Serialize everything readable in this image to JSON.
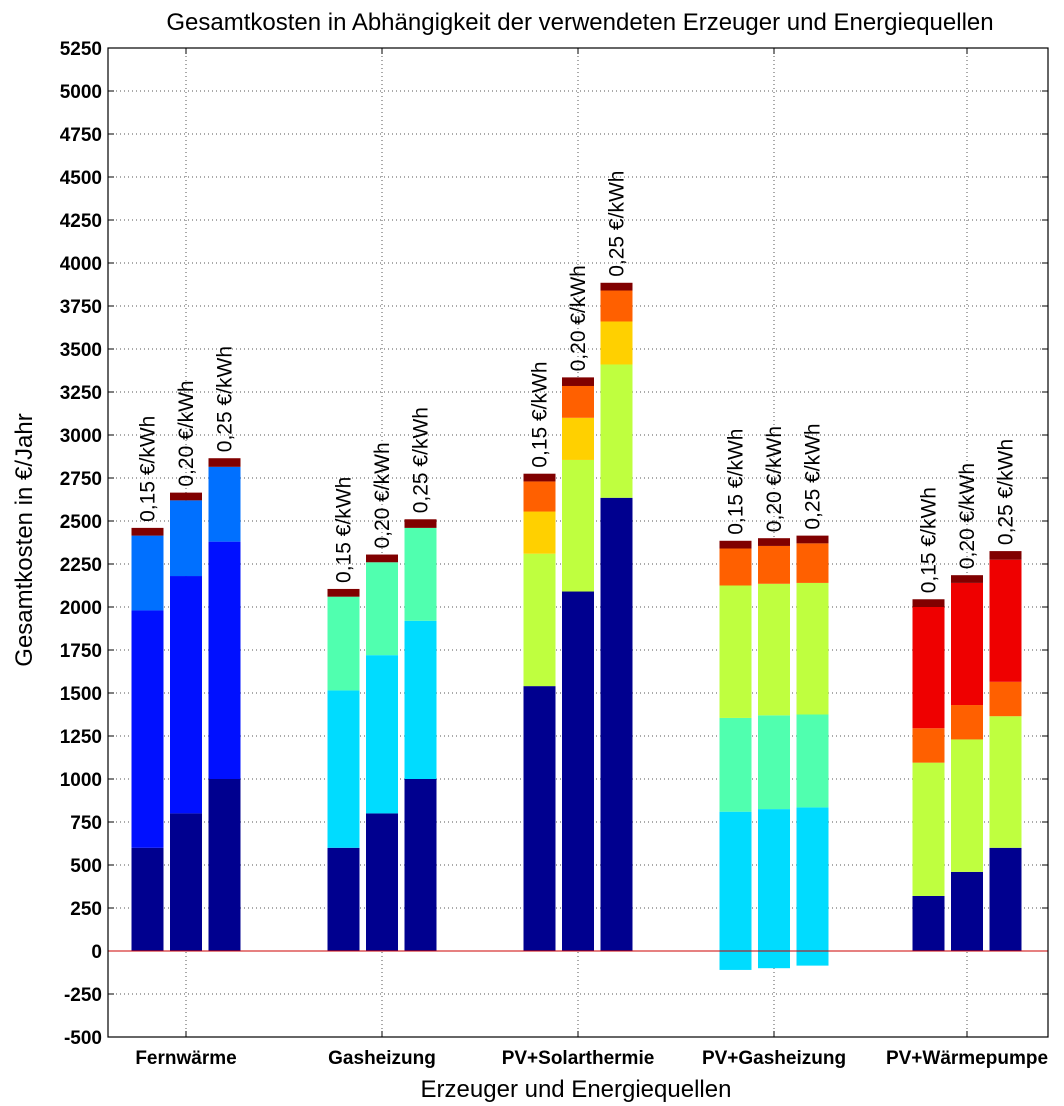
{
  "chart_data": {
    "type": "bar",
    "title": "Gesamtkosten in Abhängigkeit der verwendeten Erzeuger und Energiequellen",
    "xlabel": "Erzeuger und Energiequellen",
    "ylabel": "Gesamtkosten in €/Jahr",
    "ylim": [
      -500,
      5250
    ],
    "yticks": [
      5250,
      5000,
      4750,
      4500,
      4250,
      4000,
      3750,
      3500,
      3250,
      3000,
      2750,
      2500,
      2250,
      2000,
      1750,
      1500,
      1250,
      1000,
      750,
      500,
      250,
      0,
      -250,
      -500
    ],
    "grid": true,
    "stacked": true,
    "colors": {
      "navy": "#00008f",
      "blue": "#0010ff",
      "azure": "#0070ff",
      "cyan": "#00dcff",
      "aqua": "#50ffaf",
      "lime": "#bfff3f",
      "gold": "#ffd000",
      "orange": "#ff6000",
      "red": "#ef0000",
      "maroon": "#800000",
      "zero_line": "#cc0000",
      "grid": "#555555"
    },
    "groups": [
      {
        "category": "Fernwärme",
        "bars": [
          {
            "label": "0,15 €/kWh",
            "segments": [
              {
                "value": 600,
                "color": "navy"
              },
              {
                "value": 1380,
                "color": "blue"
              },
              {
                "value": 435,
                "color": "azure"
              },
              {
                "value": 45,
                "color": "maroon"
              }
            ]
          },
          {
            "label": "0,20 €/kWh",
            "segments": [
              {
                "value": 800,
                "color": "navy"
              },
              {
                "value": 1380,
                "color": "blue"
              },
              {
                "value": 440,
                "color": "azure"
              },
              {
                "value": 45,
                "color": "maroon"
              }
            ]
          },
          {
            "label": "0,25 €/kWh",
            "segments": [
              {
                "value": 1000,
                "color": "navy"
              },
              {
                "value": 1380,
                "color": "blue"
              },
              {
                "value": 435,
                "color": "azure"
              },
              {
                "value": 50,
                "color": "maroon"
              }
            ]
          }
        ]
      },
      {
        "category": "Gasheizung",
        "bars": [
          {
            "label": "0,15 €/kWh",
            "segments": [
              {
                "value": 600,
                "color": "navy"
              },
              {
                "value": 915,
                "color": "cyan"
              },
              {
                "value": 545,
                "color": "aqua"
              },
              {
                "value": 45,
                "color": "maroon"
              }
            ]
          },
          {
            "label": "0,20 €/kWh",
            "segments": [
              {
                "value": 800,
                "color": "navy"
              },
              {
                "value": 920,
                "color": "cyan"
              },
              {
                "value": 540,
                "color": "aqua"
              },
              {
                "value": 45,
                "color": "maroon"
              }
            ]
          },
          {
            "label": "0,25 €/kWh",
            "segments": [
              {
                "value": 1000,
                "color": "navy"
              },
              {
                "value": 920,
                "color": "cyan"
              },
              {
                "value": 540,
                "color": "aqua"
              },
              {
                "value": 50,
                "color": "maroon"
              }
            ]
          }
        ]
      },
      {
        "category": "PV+Solarthermie",
        "bars": [
          {
            "label": "0,15 €/kWh",
            "segments": [
              {
                "value": 1540,
                "color": "navy"
              },
              {
                "value": 770,
                "color": "lime"
              },
              {
                "value": 245,
                "color": "gold"
              },
              {
                "value": 175,
                "color": "orange"
              },
              {
                "value": 45,
                "color": "maroon"
              }
            ]
          },
          {
            "label": "0,20 €/kWh",
            "segments": [
              {
                "value": 2090,
                "color": "navy"
              },
              {
                "value": 765,
                "color": "lime"
              },
              {
                "value": 245,
                "color": "gold"
              },
              {
                "value": 185,
                "color": "orange"
              },
              {
                "value": 50,
                "color": "maroon"
              }
            ]
          },
          {
            "label": "0,25 €/kWh",
            "segments": [
              {
                "value": 2635,
                "color": "navy"
              },
              {
                "value": 775,
                "color": "lime"
              },
              {
                "value": 250,
                "color": "gold"
              },
              {
                "value": 180,
                "color": "orange"
              },
              {
                "value": 45,
                "color": "maroon"
              }
            ]
          }
        ]
      },
      {
        "category": "PV+Gasheizung",
        "bars": [
          {
            "label": "0,15 €/kWh",
            "negative": {
              "value": -110,
              "color": "cyan"
            },
            "segments": [
              {
                "value": 810,
                "color": "cyan"
              },
              {
                "value": 545,
                "color": "aqua"
              },
              {
                "value": 770,
                "color": "lime"
              },
              {
                "value": 215,
                "color": "orange"
              },
              {
                "value": 45,
                "color": "maroon"
              }
            ]
          },
          {
            "label": "0,20 €/kWh",
            "negative": {
              "value": -100,
              "color": "cyan"
            },
            "segments": [
              {
                "value": 825,
                "color": "cyan"
              },
              {
                "value": 545,
                "color": "aqua"
              },
              {
                "value": 765,
                "color": "lime"
              },
              {
                "value": 220,
                "color": "orange"
              },
              {
                "value": 45,
                "color": "maroon"
              }
            ]
          },
          {
            "label": "0,25 €/kWh",
            "negative": {
              "value": -85,
              "color": "cyan"
            },
            "segments": [
              {
                "value": 835,
                "color": "cyan"
              },
              {
                "value": 540,
                "color": "aqua"
              },
              {
                "value": 765,
                "color": "lime"
              },
              {
                "value": 230,
                "color": "orange"
              },
              {
                "value": 45,
                "color": "maroon"
              }
            ]
          }
        ]
      },
      {
        "category": "PV+Wärmepumpe",
        "bars": [
          {
            "label": "0,15 €/kWh",
            "segments": [
              {
                "value": 320,
                "color": "navy"
              },
              {
                "value": 775,
                "color": "lime"
              },
              {
                "value": 200,
                "color": "orange"
              },
              {
                "value": 705,
                "color": "red"
              },
              {
                "value": 45,
                "color": "maroon"
              }
            ]
          },
          {
            "label": "0,20 €/kWh",
            "segments": [
              {
                "value": 460,
                "color": "navy"
              },
              {
                "value": 770,
                "color": "lime"
              },
              {
                "value": 200,
                "color": "orange"
              },
              {
                "value": 710,
                "color": "red"
              },
              {
                "value": 45,
                "color": "maroon"
              }
            ]
          },
          {
            "label": "0,25 €/kWh",
            "segments": [
              {
                "value": 600,
                "color": "navy"
              },
              {
                "value": 765,
                "color": "lime"
              },
              {
                "value": 200,
                "color": "orange"
              },
              {
                "value": 710,
                "color": "red"
              },
              {
                "value": 50,
                "color": "maroon"
              }
            ]
          }
        ]
      }
    ]
  }
}
